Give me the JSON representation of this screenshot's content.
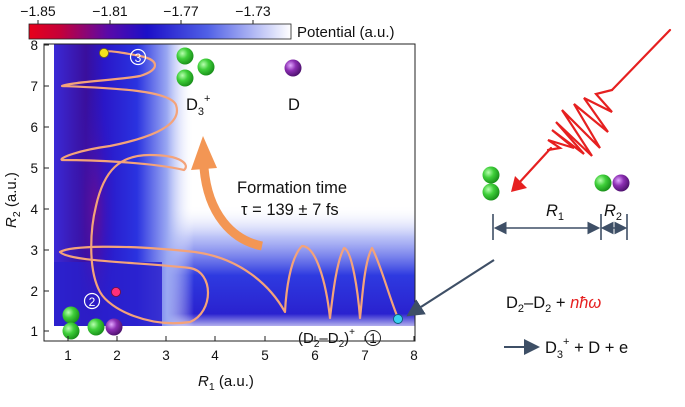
{
  "colorbar": {
    "ticks": [
      "−1.85",
      "−1.81",
      "−1.77",
      "−1.73"
    ],
    "label": "Potential (a.u.)",
    "colors": [
      "#e8001a",
      "#1c0fc8",
      "#ffffff"
    ]
  },
  "axes": {
    "x_label_main": "R",
    "x_label_sub": "1",
    "x_label_unit": " (a.u.)",
    "y_label_main": "R",
    "y_label_sub": "2",
    "y_label_unit": " (a.u.)",
    "x_ticks": [
      "1",
      "2",
      "3",
      "4",
      "5",
      "6",
      "7",
      "8"
    ],
    "y_ticks": [
      "1",
      "2",
      "3",
      "4",
      "5",
      "6",
      "7",
      "8"
    ]
  },
  "annotations": {
    "formation_line1": "Formation time",
    "formation_line2": "τ = 139 ± 7 fs",
    "marker1": "1",
    "marker2": "2",
    "marker3": "3",
    "product_d3": "D",
    "product_d3_sub": "3",
    "product_d3_sup": "+",
    "product_d": "D",
    "reactant_label": "(D",
    "reactant_label_sub1": "2",
    "reactant_label_mid": "–D",
    "reactant_label_sub2": "2",
    "reactant_label_close": ")",
    "reactant_label_sup": "+"
  },
  "schematic": {
    "r1_main": "R",
    "r1_sub": "1",
    "r2_main": "R",
    "r2_sub": "2",
    "reaction1_a": "D",
    "reaction1_a_sub": "2",
    "reaction1_b": "–D",
    "reaction1_b_sub": "2",
    "reaction1_c": " + ",
    "reaction1_photon": "nħω",
    "reaction2_a": "D",
    "reaction2_a_sub": "3",
    "reaction2_a_sup": "+",
    "reaction2_b": " + D + e"
  },
  "style_colors": {
    "trajectory": "#f4a37a",
    "arrow": "#f39654",
    "deuterium": "#3fcf3a",
    "ion": "#8c2fb3",
    "laser": "#e62020",
    "schematic_arrow": "#3e4f66"
  }
}
